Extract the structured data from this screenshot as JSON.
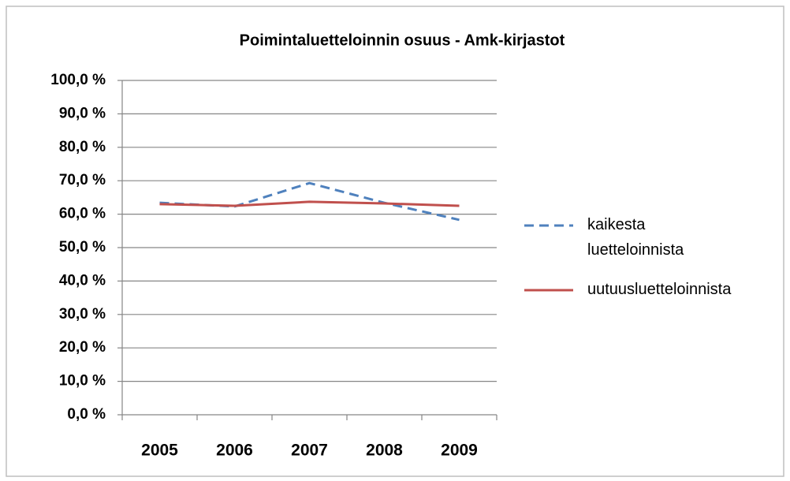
{
  "chart_data": {
    "type": "line",
    "title": "Poimintaluetteloinnin osuus - Amk-kirjastot",
    "categories": [
      "2005",
      "2006",
      "2007",
      "2008",
      "2009"
    ],
    "series": [
      {
        "name": "kaikesta luetteloinnista",
        "color": "#4f81bd",
        "dash": true,
        "values": [
          63.4,
          62.3,
          69.3,
          63.4,
          58.3
        ]
      },
      {
        "name": "uutuusluetteloinnista",
        "color": "#c0504d",
        "dash": false,
        "values": [
          63.0,
          62.5,
          63.7,
          63.2,
          62.5
        ]
      }
    ],
    "ylim": [
      0,
      100
    ],
    "yticks": [
      {
        "value": 0,
        "label": "0,0 %"
      },
      {
        "value": 10,
        "label": "10,0 %"
      },
      {
        "value": 20,
        "label": "20,0 %"
      },
      {
        "value": 30,
        "label": "30,0 %"
      },
      {
        "value": 40,
        "label": "40,0 %"
      },
      {
        "value": 50,
        "label": "50,0 %"
      },
      {
        "value": 60,
        "label": "60,0 %"
      },
      {
        "value": 70,
        "label": "70,0 %"
      },
      {
        "value": 80,
        "label": "80,0 %"
      },
      {
        "value": 90,
        "label": "90,0 %"
      },
      {
        "value": 100,
        "label": "100,0 %"
      }
    ],
    "grid": true,
    "legend": "right"
  }
}
